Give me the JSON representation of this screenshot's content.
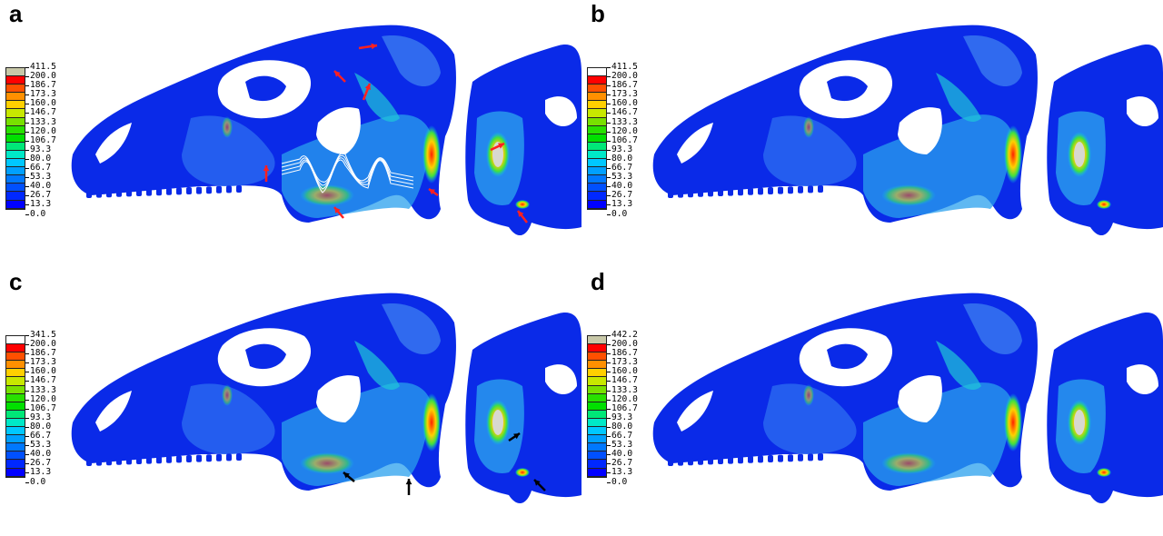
{
  "figure": {
    "description": "Finite element stress contour maps of a dinosaur skull in lateral view with posterior oblique view, four loading scenarios",
    "colorscale": [
      "#0000ff",
      "#0028ff",
      "#0050ff",
      "#0078ff",
      "#00a0ff",
      "#00c8ff",
      "#00e8c8",
      "#00e878",
      "#00e000",
      "#28e000",
      "#78e000",
      "#c8e800",
      "#ffd000",
      "#ff9000",
      "#ff5000",
      "#ff0000"
    ]
  },
  "panels": [
    {
      "label": "a",
      "legend": {
        "values": [
          "411.5",
          "200.0",
          "186.7",
          "173.3",
          "160.0",
          "146.7",
          "133.3",
          "120.0",
          "106.7",
          "93.3",
          "80.0",
          "66.7",
          "53.3",
          "40.0",
          "26.7",
          "13.3",
          "0.0"
        ],
        "max_color": "#c8c8a8"
      },
      "annotations": {
        "arrow_color": "#ff2020",
        "arrows": 8,
        "has_muscle_lines": true
      }
    },
    {
      "label": "b",
      "legend": {
        "values": [
          "411.5",
          "200.0",
          "186.7",
          "173.3",
          "160.0",
          "146.7",
          "133.3",
          "120.0",
          "106.7",
          "93.3",
          "80.0",
          "66.7",
          "53.3",
          "40.0",
          "26.7",
          "13.3",
          "0.0"
        ],
        "max_color": "#ffffff"
      },
      "annotations": {
        "arrow_color": "",
        "arrows": 0,
        "has_muscle_lines": false
      }
    },
    {
      "label": "c",
      "legend": {
        "values": [
          "341.5",
          "200.0",
          "186.7",
          "173.3",
          "160.0",
          "146.7",
          "133.3",
          "120.0",
          "106.7",
          "93.3",
          "80.0",
          "66.7",
          "53.3",
          "40.0",
          "26.7",
          "13.3",
          "0.0"
        ],
        "max_color": "#ffffff"
      },
      "annotations": {
        "arrow_color": "#000000",
        "arrows": 4,
        "has_muscle_lines": false
      }
    },
    {
      "label": "d",
      "legend": {
        "values": [
          "442.2",
          "200.0",
          "186.7",
          "173.3",
          "160.0",
          "146.7",
          "133.3",
          "120.0",
          "106.7",
          "93.3",
          "80.0",
          "66.7",
          "53.3",
          "40.0",
          "26.7",
          "13.3",
          "0.0"
        ],
        "max_color": "#c8c8a8"
      },
      "annotations": {
        "arrow_color": "",
        "arrows": 0,
        "has_muscle_lines": false
      }
    }
  ]
}
